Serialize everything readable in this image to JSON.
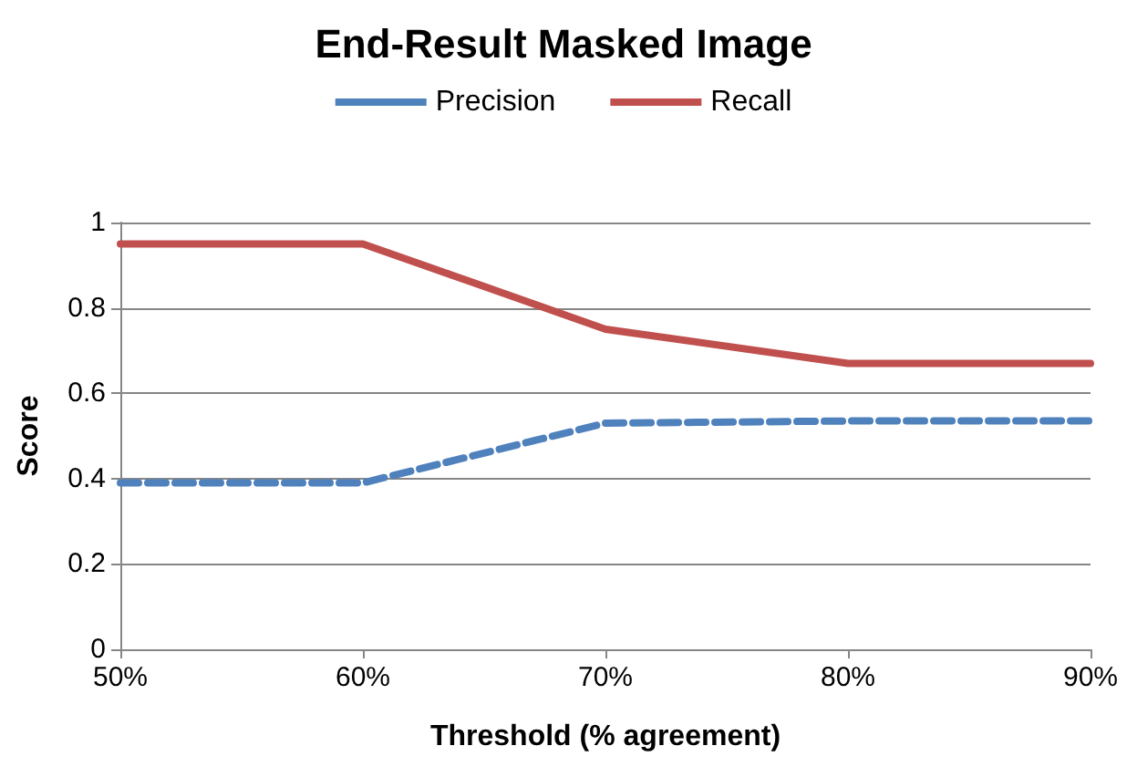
{
  "chart_data": {
    "type": "line",
    "title": "End-Result Masked Image",
    "xlabel": "Threshold (% agreement)",
    "ylabel": "Score",
    "categories": [
      "50%",
      "60%",
      "70%",
      "80%",
      "90%"
    ],
    "series": [
      {
        "name": "Precision",
        "color": "#4f81bd",
        "line_style": "dashed",
        "values": [
          0.39,
          0.39,
          0.53,
          0.535,
          0.535
        ]
      },
      {
        "name": "Recall",
        "color": "#c0504d",
        "line_style": "solid",
        "values": [
          0.95,
          0.95,
          0.75,
          0.67,
          0.67
        ]
      }
    ],
    "ylim": [
      0,
      1
    ],
    "yticks": [
      0,
      0.2,
      0.4,
      0.6,
      0.8,
      1
    ],
    "grid": "y",
    "legend": "top",
    "marker": "none"
  }
}
